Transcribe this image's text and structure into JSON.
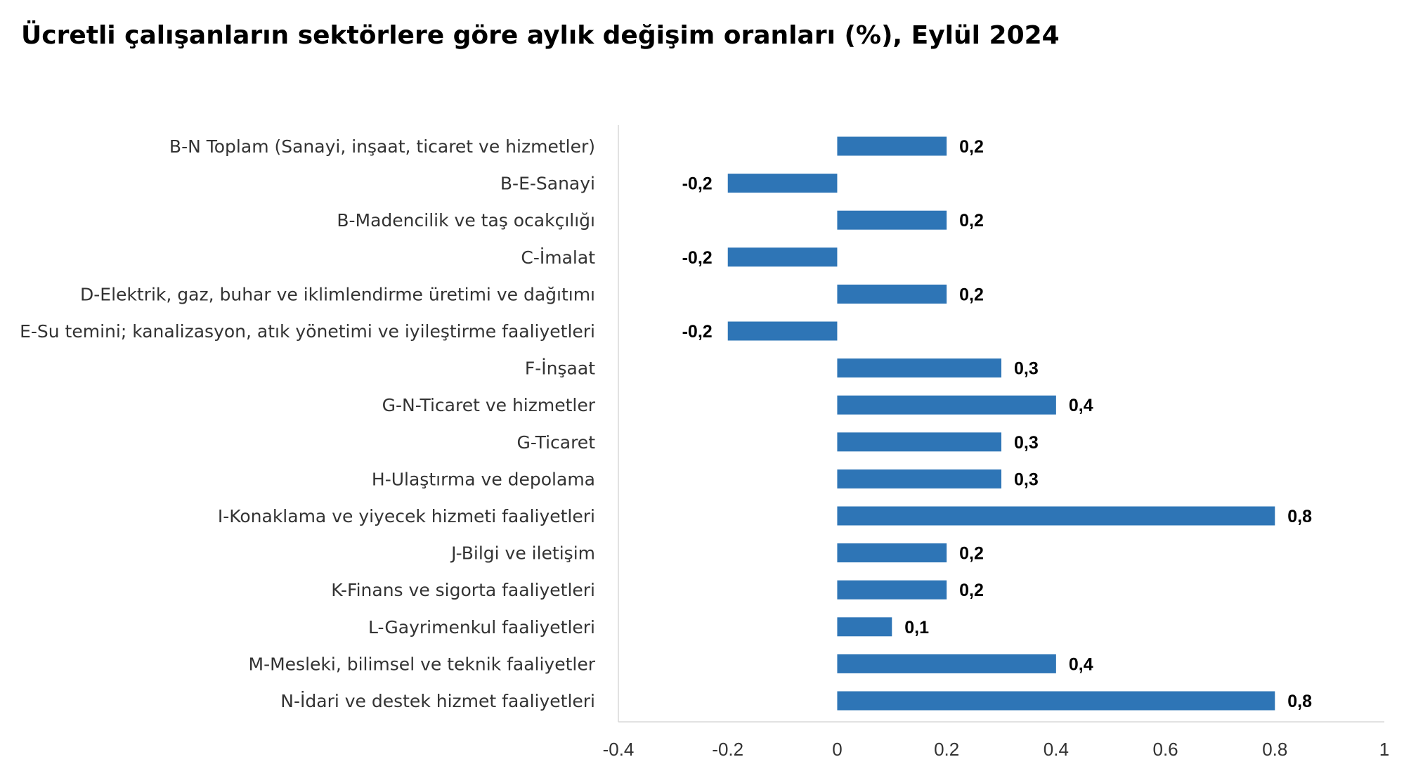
{
  "chart_data": {
    "type": "bar",
    "orientation": "horizontal",
    "title": "Ücretli çalışanların sektörlere göre aylık değişim oranları (%), Eylül 2024",
    "categories": [
      "B-N Toplam (Sanayi, inşaat, ticaret ve hizmetler)",
      "B-E-Sanayi",
      "B-Madencilik ve taş ocakçılığı",
      "C-İmalat",
      "D-Elektrik, gaz, buhar ve iklimlendirme üretimi ve dağıtımı",
      "E-Su temini; kanalizasyon, atık yönetimi ve iyileştirme faaliyetleri",
      "F-İnşaat",
      "G-N-Ticaret ve hizmetler",
      "G-Ticaret",
      "H-Ulaştırma ve depolama",
      "I-Konaklama ve yiyecek hizmeti faaliyetleri",
      "J-Bilgi ve iletişim",
      "K-Finans ve sigorta faaliyetleri",
      "L-Gayrimenkul faaliyetleri",
      "M-Mesleki, bilimsel ve teknik faaliyetler",
      "N-İdari ve destek hizmet faaliyetleri"
    ],
    "values": [
      0.2,
      -0.2,
      0.2,
      -0.2,
      0.2,
      -0.2,
      0.3,
      0.4,
      0.3,
      0.3,
      0.8,
      0.2,
      0.2,
      0.1,
      0.4,
      0.8
    ],
    "value_labels": [
      "0,2",
      "-0,2",
      "0,2",
      "-0,2",
      "0,2",
      "-0,2",
      "0,3",
      "0,4",
      "0,3",
      "0,3",
      "0,8",
      "0,2",
      "0,2",
      "0,1",
      "0,4",
      "0,8"
    ],
    "x_ticks": [
      "-0.4",
      "-0.2",
      "0",
      "0.2",
      "0.4",
      "0.6",
      "0.8",
      "1"
    ],
    "xlim": [
      -0.4,
      1
    ],
    "bar_color": "#2E75B6",
    "grid": false,
    "legend": "none"
  }
}
